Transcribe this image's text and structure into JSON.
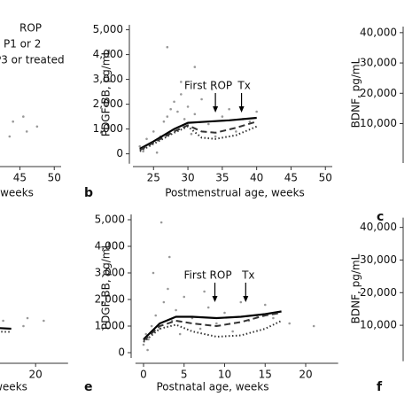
{
  "chart_data": [
    {
      "type": "line",
      "xlabel": "weeks",
      "xlim": [
        22,
        51
      ],
      "ylim": [
        -400,
        5200
      ],
      "xticks": [
        45,
        50
      ],
      "legend": [
        "ROP",
        "P1 or 2",
        "P3 or treated"
      ],
      "points": {
        "color": "#999999",
        "x": [
          44,
          45.5,
          46,
          47.5,
          43.5
        ],
        "values": [
          1300,
          1500,
          900,
          1100,
          700
        ]
      },
      "series": []
    },
    {
      "type": "line",
      "label": "b",
      "xlabel": "Postmenstrual age, weeks",
      "ylabel": "PDGF-BB, pg/mL",
      "xlim": [
        22,
        51
      ],
      "ylim": [
        -400,
        5200
      ],
      "xticks": [
        25,
        30,
        35,
        40,
        45,
        50
      ],
      "yticks": [
        0,
        {
          "value": 1000,
          "label": "1,000"
        },
        {
          "value": 2000,
          "label": "2,000"
        },
        {
          "value": 3000,
          "label": "3,000"
        },
        {
          "value": 4000,
          "label": "4,000"
        },
        {
          "value": 5000,
          "label": "5,000"
        }
      ],
      "annotations": [
        {
          "text": "First ROP",
          "x": 34
        },
        {
          "text": "Tx",
          "x": 37.8
        }
      ],
      "points": {
        "color": "#999999",
        "x": [
          23,
          23.5,
          24,
          24.5,
          25,
          26,
          26.5,
          27,
          27.5,
          28,
          28.5,
          29,
          29.5,
          30,
          30.5,
          31,
          32,
          33,
          34,
          35,
          36,
          37,
          38,
          39,
          40,
          27,
          29,
          31,
          25.5,
          33.5
        ],
        "values": [
          300,
          100,
          600,
          400,
          900,
          700,
          1300,
          1500,
          1800,
          2100,
          1700,
          2400,
          1400,
          1900,
          800,
          1600,
          2200,
          1200,
          700,
          1500,
          1800,
          900,
          1400,
          1300,
          1700,
          4300,
          2900,
          3500,
          50,
          2600
        ]
      },
      "series": [
        {
          "style": "solid",
          "color": "#000000",
          "x": [
            23,
            25,
            28,
            30,
            33,
            36,
            40
          ],
          "values": [
            200,
            500,
            1000,
            1250,
            1300,
            1350,
            1450
          ]
        },
        {
          "style": "dashed",
          "color": "#333333",
          "x": [
            23,
            25,
            28,
            30,
            32,
            34,
            37,
            40
          ],
          "values": [
            150,
            450,
            900,
            1150,
            900,
            850,
            1050,
            1300
          ]
        },
        {
          "style": "dotted",
          "color": "#333333",
          "x": [
            23,
            25,
            28,
            30,
            32,
            34,
            37,
            40
          ],
          "values": [
            100,
            400,
            850,
            1100,
            650,
            600,
            750,
            1100
          ]
        }
      ]
    },
    {
      "type": "line",
      "label": "c",
      "ylabel": "BDNF, pg/mL",
      "ylim": [
        -3000,
        42000
      ],
      "yticks": [
        {
          "value": 10000,
          "label": "10,000"
        },
        {
          "value": 20000,
          "label": "20,000"
        },
        {
          "value": 30000,
          "label": "30,000"
        },
        {
          "value": 40000,
          "label": "40,000"
        }
      ],
      "series": []
    },
    {
      "type": "line",
      "xlabel": "weeks",
      "xlim": [
        -1,
        24
      ],
      "ylim": [
        -200,
        5200
      ],
      "xticks": [
        20
      ],
      "points": {
        "color": "#999999",
        "x": [
          14.5,
          15,
          16,
          18.5,
          19,
          21
        ],
        "values": [
          1600,
          900,
          1200,
          1000,
          1300,
          1200
        ]
      },
      "series": [
        {
          "style": "solid",
          "color": "#000000",
          "x": [
            14,
            17
          ],
          "values": [
            950,
            900
          ]
        },
        {
          "style": "dotted",
          "color": "#333333",
          "x": [
            14,
            17
          ],
          "values": [
            800,
            780
          ]
        }
      ]
    },
    {
      "type": "line",
      "label": "e",
      "xlabel": "Postnatal age, weeks",
      "ylabel": "PDGF-BB, pg/mL",
      "xlim": [
        -1,
        24
      ],
      "ylim": [
        -200,
        5200
      ],
      "xticks": [
        0,
        5,
        10,
        15,
        20
      ],
      "yticks": [
        0,
        {
          "value": 1000,
          "label": "1,000"
        },
        {
          "value": 2000,
          "label": "2,000"
        },
        {
          "value": 3000,
          "label": "3,000"
        },
        {
          "value": 4000,
          "label": "4,000"
        },
        {
          "value": 5000,
          "label": "5,000"
        }
      ],
      "annotations": [
        {
          "text": "First ROP",
          "x": 8.8
        },
        {
          "text": "Tx",
          "x": 12.6
        }
      ],
      "points": {
        "color": "#999999",
        "x": [
          0,
          0.3,
          0.6,
          1,
          1.5,
          2,
          2.5,
          3,
          3.5,
          4,
          4.5,
          5,
          6,
          7,
          8,
          9,
          10,
          11,
          12,
          13,
          14,
          15,
          16,
          18,
          21,
          2.2,
          1.2,
          3.2,
          0.5,
          7.5
        ],
        "values": [
          300,
          700,
          500,
          1000,
          1400,
          900,
          1900,
          2400,
          1200,
          1600,
          700,
          2100,
          1300,
          900,
          1700,
          1100,
          1500,
          800,
          1900,
          1200,
          1400,
          1800,
          1300,
          1100,
          1000,
          4900,
          3000,
          3600,
          100,
          2300
        ]
      },
      "series": [
        {
          "style": "solid",
          "color": "#000000",
          "x": [
            0,
            2,
            4,
            6,
            9,
            12,
            15,
            17
          ],
          "values": [
            500,
            1100,
            1350,
            1350,
            1300,
            1350,
            1450,
            1550
          ]
        },
        {
          "style": "dashed",
          "color": "#333333",
          "x": [
            0,
            2,
            4,
            6,
            9,
            12,
            15,
            17
          ],
          "values": [
            450,
            1000,
            1200,
            1100,
            1000,
            1150,
            1400,
            1500
          ]
        },
        {
          "style": "dotted",
          "color": "#333333",
          "x": [
            0,
            2,
            4,
            6,
            9,
            12,
            15,
            17
          ],
          "values": [
            400,
            900,
            1050,
            800,
            600,
            650,
            900,
            1200
          ]
        }
      ]
    },
    {
      "type": "line",
      "label": "f",
      "ylabel": "BDNF, pg/mL",
      "ylim": [
        -1000,
        43000
      ],
      "yticks": [
        {
          "value": 10000,
          "label": "10,000"
        },
        {
          "value": 20000,
          "label": "20,000"
        },
        {
          "value": 30000,
          "label": "30,000"
        },
        {
          "value": 40000,
          "label": "40,000"
        }
      ],
      "series": []
    }
  ]
}
